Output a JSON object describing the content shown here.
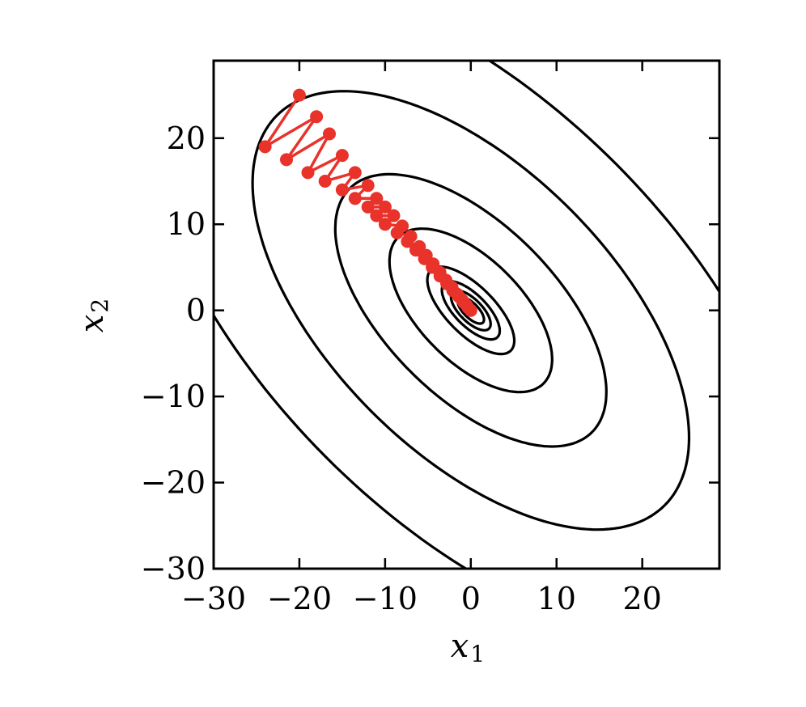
{
  "chart_data": {
    "type": "contour",
    "xlabel": "x",
    "xlabel_sub": "1",
    "ylabel": "x",
    "ylabel_sub": "2",
    "xlim": [
      -30,
      29
    ],
    "ylim": [
      -30,
      29
    ],
    "xticks": [
      -30,
      -20,
      -10,
      0,
      10,
      20
    ],
    "yticks": [
      -30,
      -20,
      -10,
      0,
      10,
      20
    ],
    "xtick_labels": [
      "−30",
      "−20",
      "−10",
      "0",
      "10",
      "20"
    ],
    "ytick_labels": [
      "−30",
      "−20",
      "−10",
      "0",
      "10",
      "20"
    ],
    "contours": {
      "color": "#000000",
      "center": [
        0,
        0
      ],
      "orientation_deg": -45,
      "semi_axes": [
        [
          2.0,
          0.85
        ],
        [
          3.0,
          1.3
        ],
        [
          4.4,
          1.85
        ],
        [
          6.6,
          2.8
        ],
        [
          12.0,
          6.0
        ],
        [
          20.0,
          10.0
        ],
        [
          32.0,
          16.5
        ],
        [
          48.0,
          24.0
        ]
      ]
    },
    "trajectory": {
      "color": "#e8322a",
      "points": [
        [
          -20.0,
          25.0
        ],
        [
          -24.0,
          19.0
        ],
        [
          -18.0,
          22.5
        ],
        [
          -21.5,
          17.5
        ],
        [
          -16.5,
          20.5
        ],
        [
          -19.0,
          16.0
        ],
        [
          -15.0,
          18.0
        ],
        [
          -17.0,
          15.0
        ],
        [
          -13.5,
          16.0
        ],
        [
          -15.0,
          14.0
        ],
        [
          -12.0,
          14.5
        ],
        [
          -13.5,
          13.0
        ],
        [
          -11.0,
          13.0
        ],
        [
          -12.0,
          12.0
        ],
        [
          -10.0,
          12.0
        ],
        [
          -11.0,
          11.0
        ],
        [
          -9.0,
          11.0
        ],
        [
          -10.0,
          10.0
        ],
        [
          -8.0,
          9.8
        ],
        [
          -8.6,
          9.0
        ],
        [
          -7.0,
          8.6
        ],
        [
          -7.4,
          8.0
        ],
        [
          -6.0,
          7.4
        ],
        [
          -6.4,
          7.0
        ],
        [
          -5.2,
          6.4
        ],
        [
          -5.4,
          6.0
        ],
        [
          -4.4,
          5.4
        ],
        [
          -4.5,
          5.0
        ],
        [
          -3.6,
          4.4
        ],
        [
          -3.6,
          4.0
        ],
        [
          -2.9,
          3.5
        ],
        [
          -2.8,
          3.1
        ],
        [
          -2.2,
          2.7
        ],
        [
          -2.1,
          2.3
        ],
        [
          -1.6,
          1.9
        ],
        [
          -1.4,
          1.6
        ],
        [
          -1.0,
          1.2
        ],
        [
          -0.8,
          0.9
        ],
        [
          -0.5,
          0.6
        ],
        [
          -0.3,
          0.3
        ],
        [
          0.0,
          0.0
        ]
      ]
    }
  }
}
